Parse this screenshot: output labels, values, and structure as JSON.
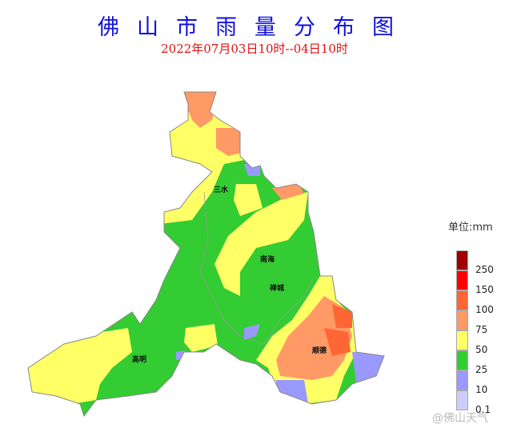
{
  "title": "佛山市雨量分布图",
  "subtitle": "2022年07月03日10时--04日10时",
  "legend": {
    "unit": "单位:mm",
    "thresholds": [
      "250",
      "150",
      "100",
      "75",
      "50",
      "25",
      "10",
      "0.1"
    ],
    "colors": [
      "#a00000",
      "#ff0000",
      "#ff6633",
      "#ff9966",
      "#ffff66",
      "#33cc33",
      "#9999ff",
      "#ccccff"
    ]
  },
  "places": {
    "sanshui": "三水",
    "nanhai": "南海",
    "chancheng": "禅城",
    "gaoming": "高明",
    "shunde": "顺德"
  },
  "watermark": "@佛山天气"
}
